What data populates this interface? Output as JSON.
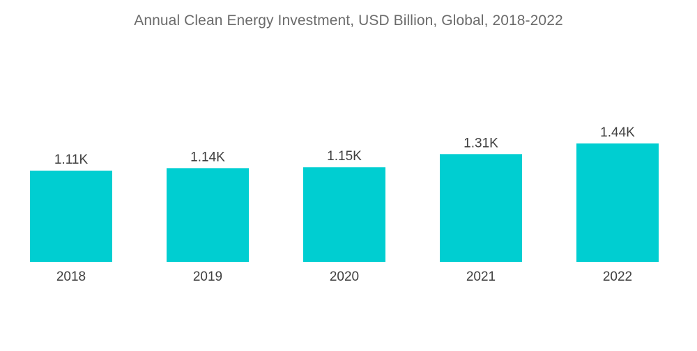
{
  "chart_data": {
    "type": "bar",
    "title": "Annual Clean Energy Investment, USD Billion, Global, 2018-2022",
    "xlabel": "",
    "ylabel": "",
    "categories": [
      "2018",
      "2019",
      "2020",
      "2021",
      "2022"
    ],
    "values": [
      1110,
      1140,
      1150,
      1310,
      1440
    ],
    "value_labels": [
      "1.11K",
      "1.14K",
      "1.15K",
      "1.31K",
      "1.44K"
    ],
    "ylim": [
      0,
      1500
    ],
    "grid": false,
    "legend": "none",
    "bar_color": "#00CED1"
  }
}
